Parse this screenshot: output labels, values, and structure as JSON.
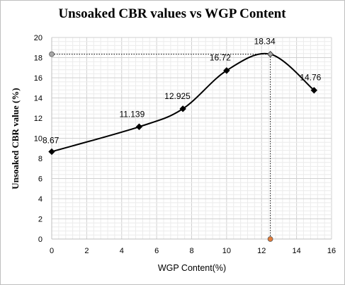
{
  "chart_data": {
    "type": "scatter",
    "title": "Unsoaked CBR values  vs WGP Content",
    "xlabel": "WGP Content(%)",
    "ylabel": "Unsoaked CBR value (%)",
    "xlim": [
      0,
      16
    ],
    "ylim": [
      0,
      20
    ],
    "xticks": [
      0,
      2,
      4,
      6,
      8,
      10,
      12,
      14,
      16
    ],
    "yticks": [
      0,
      2,
      4,
      6,
      8,
      10,
      12,
      14,
      16,
      18,
      20
    ],
    "grid": true,
    "series": [
      {
        "x": [
          0,
          5,
          7.5,
          10,
          12.5,
          15
        ],
        "y": [
          8.67,
          11.139,
          12.925,
          16.72,
          18.34,
          14.76
        ],
        "labels": [
          "8.67",
          "11.139",
          "12.925",
          "16.72",
          "18.34",
          "14.76"
        ],
        "smooth": true,
        "color": "#000000",
        "marker": "diamond"
      }
    ],
    "optimum": {
      "x": 12.5,
      "y": 18.34,
      "guide_color": "#000000",
      "marker_color": "#a6a6a6",
      "x_axis_marker_color": "#e07b39"
    }
  }
}
